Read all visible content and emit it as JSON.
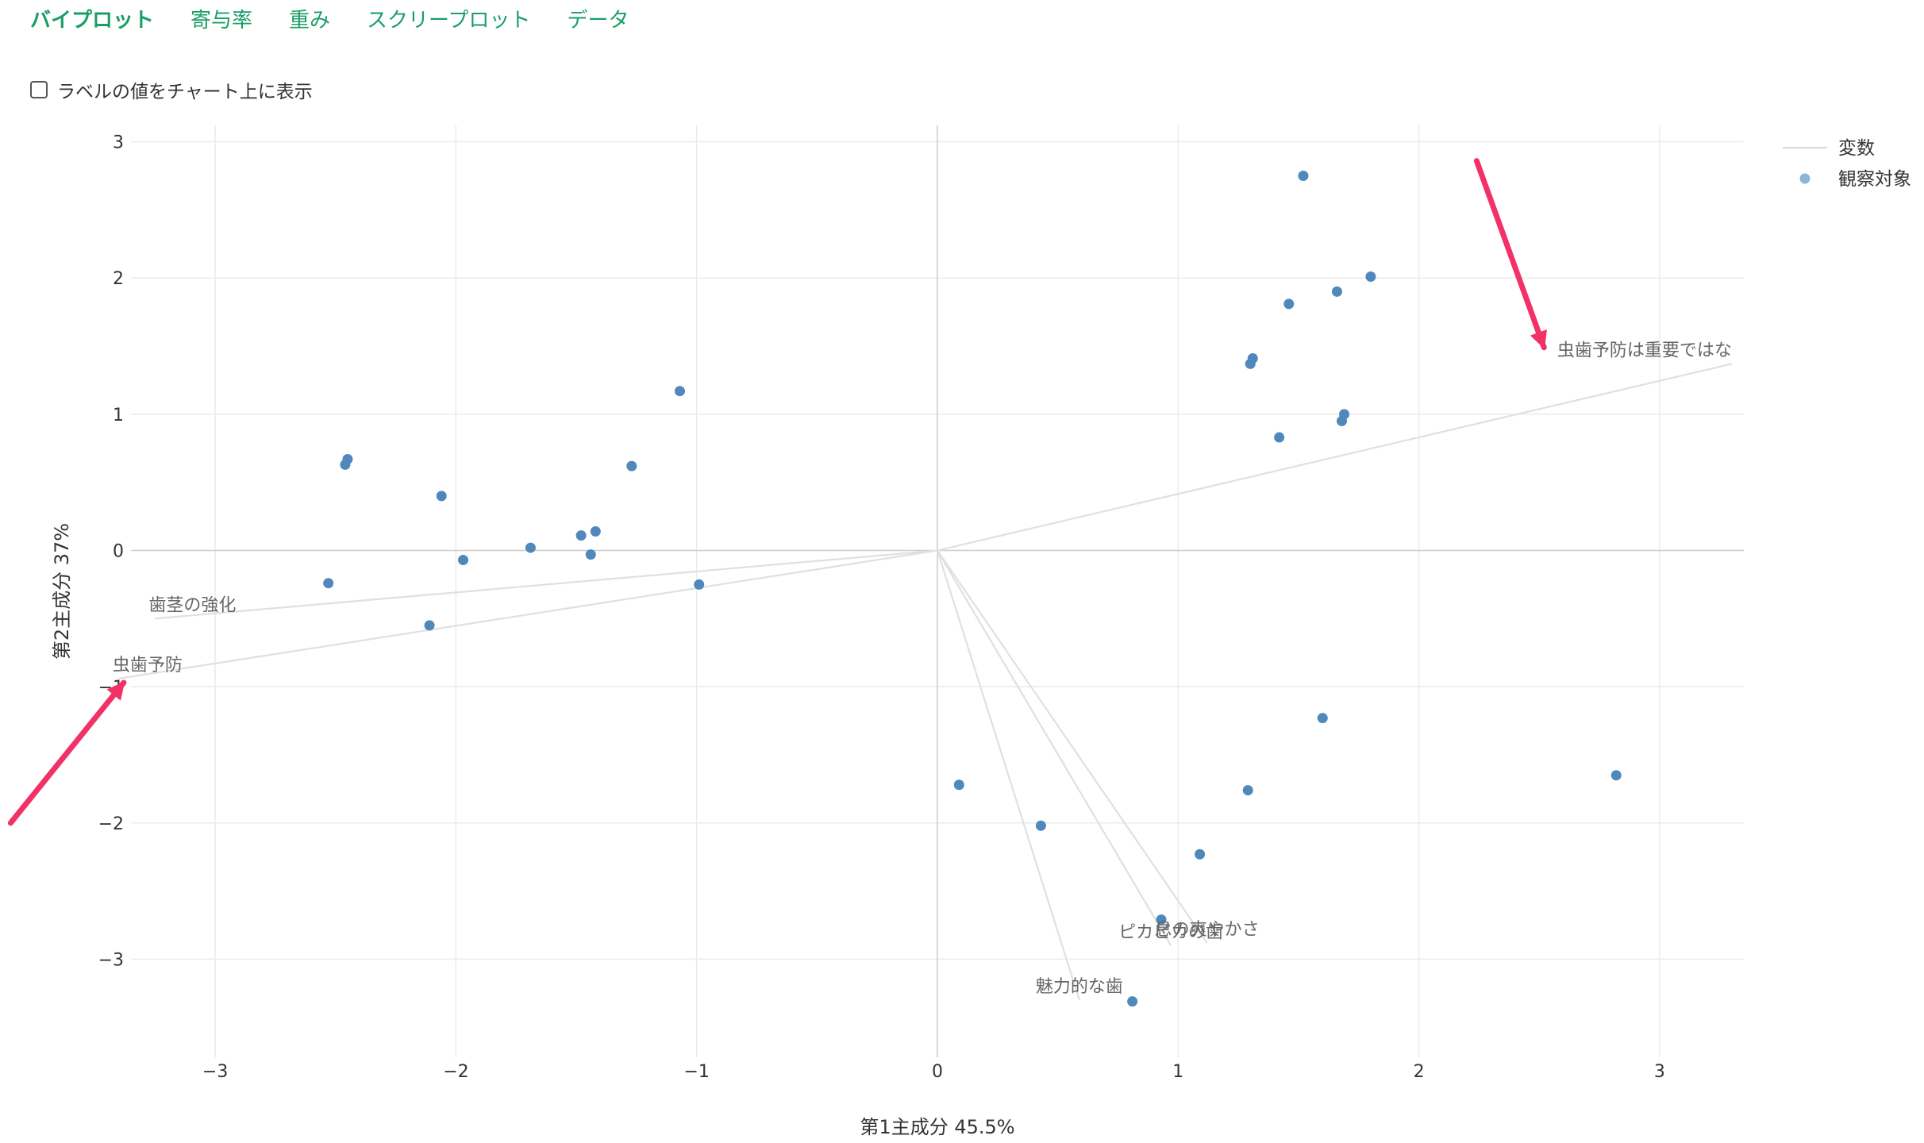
{
  "tabs": [
    {
      "label": "バイプロット",
      "active": true
    },
    {
      "label": "寄与率",
      "active": false
    },
    {
      "label": "重み",
      "active": false
    },
    {
      "label": "スクリープロット",
      "active": false
    },
    {
      "label": "データ",
      "active": false
    }
  ],
  "label_toggle": {
    "label": "ラベルの値をチャート上に表示",
    "checked": false
  },
  "chart_data": {
    "type": "scatter",
    "xlabel": "第1主成分 45.5%",
    "ylabel": "第2主成分 37%",
    "xlim": [
      -3.35,
      3.35
    ],
    "ylim": [
      -3.72,
      3.12
    ],
    "xticks": [
      -3,
      -2,
      -1,
      0,
      1,
      2,
      3
    ],
    "yticks": [
      -3,
      -2,
      -1,
      0,
      1,
      2,
      3
    ],
    "grid": true,
    "legend_position": "top-right",
    "legend": [
      {
        "label": "変数",
        "kind": "line",
        "color": "#d9d9d9"
      },
      {
        "label": "観察対象",
        "kind": "marker",
        "color": "#8cb4d9"
      }
    ],
    "point_color": "#4f88bb",
    "vector_color": "#e0e0e0",
    "arrow_color": "#f23167",
    "variables": [
      {
        "label": "虫歯予防は重要ではな",
        "x": 3.3,
        "y": 1.37
      },
      {
        "label": "歯茎の強化",
        "x": -3.25,
        "y": -0.5
      },
      {
        "label": "虫歯予防",
        "x": -3.4,
        "y": -0.94
      },
      {
        "label": "ピカピカの歯",
        "x": 0.97,
        "y": -2.9
      },
      {
        "label": "息の爽やかさ",
        "x": 1.12,
        "y": -2.88
      },
      {
        "label": "魅力的な歯",
        "x": 0.59,
        "y": -3.3
      }
    ],
    "points": [
      {
        "x": 1.52,
        "y": 2.75
      },
      {
        "x": 1.8,
        "y": 2.01
      },
      {
        "x": 1.66,
        "y": 1.9
      },
      {
        "x": 1.46,
        "y": 1.81
      },
      {
        "x": 1.31,
        "y": 1.41
      },
      {
        "x": 1.3,
        "y": 1.37
      },
      {
        "x": 1.69,
        "y": 1.0
      },
      {
        "x": 1.68,
        "y": 0.95
      },
      {
        "x": 1.42,
        "y": 0.83
      },
      {
        "x": -1.07,
        "y": 1.17
      },
      {
        "x": -2.45,
        "y": 0.67
      },
      {
        "x": -2.46,
        "y": 0.63
      },
      {
        "x": -1.27,
        "y": 0.62
      },
      {
        "x": -2.06,
        "y": 0.4
      },
      {
        "x": -1.42,
        "y": 0.14
      },
      {
        "x": -1.48,
        "y": 0.11
      },
      {
        "x": -1.69,
        "y": 0.02
      },
      {
        "x": -1.44,
        "y": -0.03
      },
      {
        "x": -1.97,
        "y": -0.07
      },
      {
        "x": -2.53,
        "y": -0.24
      },
      {
        "x": -0.99,
        "y": -0.25
      },
      {
        "x": -2.11,
        "y": -0.55
      },
      {
        "x": 1.6,
        "y": -1.23
      },
      {
        "x": 2.82,
        "y": -1.65
      },
      {
        "x": 0.09,
        "y": -1.72
      },
      {
        "x": 1.29,
        "y": -1.76
      },
      {
        "x": 0.43,
        "y": -2.02
      },
      {
        "x": 1.09,
        "y": -2.23
      },
      {
        "x": 0.93,
        "y": -2.71
      },
      {
        "x": 0.81,
        "y": -3.31
      }
    ],
    "annotation_arrows": [
      {
        "from": [
          2.24,
          2.86
        ],
        "to": [
          2.52,
          1.49
        ]
      },
      {
        "from": [
          -3.85,
          -2.0
        ],
        "to": [
          -3.38,
          -0.97
        ]
      }
    ]
  }
}
